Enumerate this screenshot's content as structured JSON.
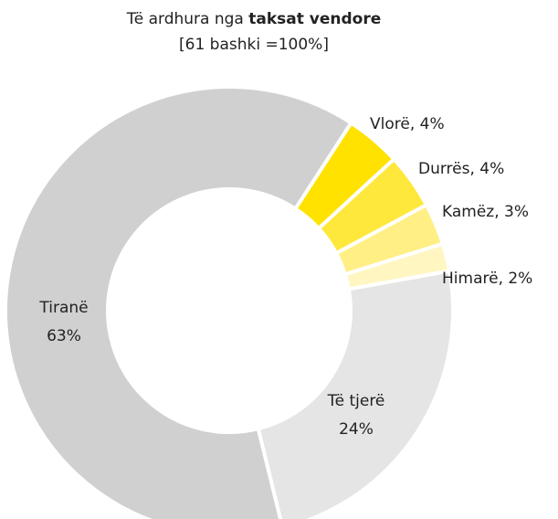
{
  "chart_data": {
    "type": "donut",
    "title": "Të ardhura nga",
    "title_bold": "taksat vendore",
    "subtitle": "[61 bashki =100%]",
    "categories": [
      "Vlorë",
      "Durrës",
      "Kamëz",
      "Himarë",
      "Të tjerë",
      "Tiranë"
    ],
    "values": [
      4,
      4,
      3,
      2,
      24,
      63
    ],
    "value_labels": [
      ", 4%",
      ", 4%",
      ", 3%",
      ", 2%",
      "24%",
      "63%"
    ],
    "colors": [
      "#ffe200",
      "#ffe83c",
      "#ffef85",
      "#fff6c2",
      "#e5e5e5",
      "#d1d0d0"
    ]
  }
}
